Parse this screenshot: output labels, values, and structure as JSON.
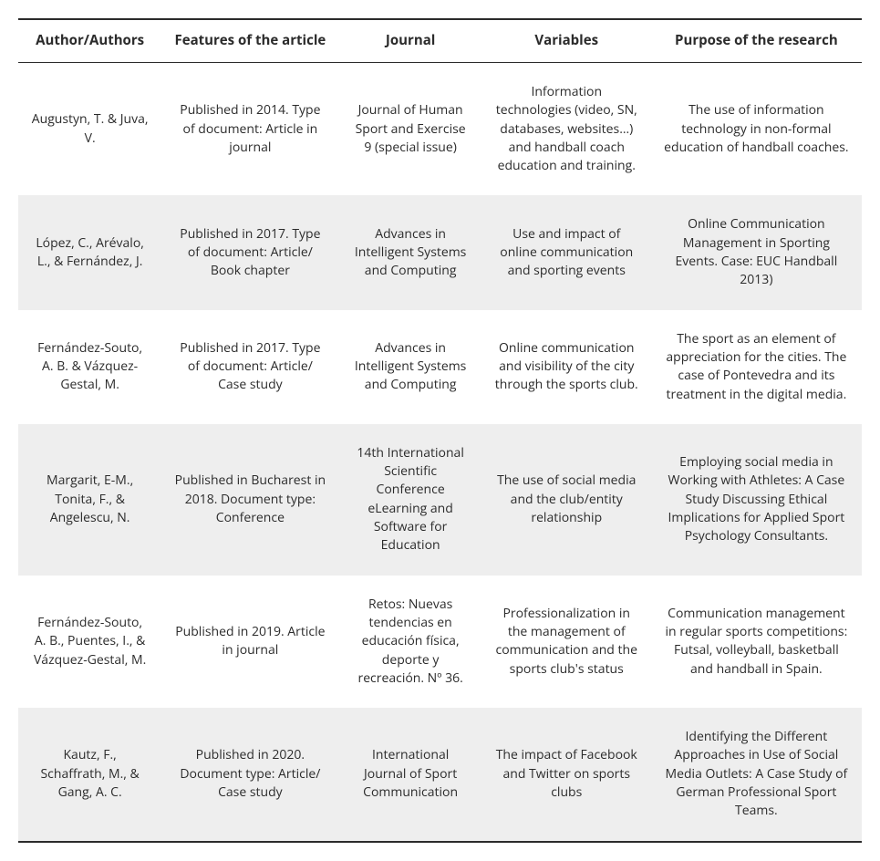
{
  "table": {
    "type": "table",
    "background_color": "#ffffff",
    "row_shade_color": "#eeeeee",
    "border_color": "#2b2b2b",
    "text_color": "#2b2b2b",
    "header_fontsize": 15,
    "body_fontsize": 14,
    "header_fontweight": 700,
    "column_widths_pct": [
      17,
      21,
      17,
      20,
      25
    ],
    "columns": [
      "Author/Authors",
      "Features of the article",
      "Journal",
      "Variables",
      "Purpose of the research"
    ],
    "rows": [
      {
        "shaded": false,
        "cells": [
          "Augustyn, T. & Juva, V.",
          "Published in 2014. Type of document: Article in journal",
          "Journal of Human Sport and Exercise 9 (special issue)",
          "Information technologies (video, SN, databases, websites…) and handball coach education and training.",
          "The use of information technology in non-formal education of handball coaches."
        ]
      },
      {
        "shaded": true,
        "cells": [
          "López, C., Arévalo, L., & Fernández, J.",
          "Published in 2017. Type of document: Article/ Book chapter",
          "Advances in Intelligent Systems and Computing",
          "Use and impact of online communication and sporting events",
          "Online Communication Management in Sporting Events. Case: EUC Handball 2013)"
        ]
      },
      {
        "shaded": false,
        "cells": [
          "Fernández-Souto, A. B. & Vázquez-Gestal, M.",
          "Published in 2017. Type of document: Article/ Case study",
          "Advances in Intelligent Systems and Computing",
          "Online communication and visibility of the city through the sports club.",
          "The sport as an element of appreciation for the cities. The case of Pontevedra and its treatment in the digital media."
        ]
      },
      {
        "shaded": true,
        "cells": [
          "Margarit, E-M., Tonita, F., & Angelescu, N.",
          "Published in Bucharest in 2018. Document type: Conference",
          "14th International Scientific Conference eLearning and Software for Education",
          "The use of social media and the club/entity relationship",
          "Employing social media in Working with Athletes: A Case Study Discussing Ethical Implications for Applied Sport Psychology Consultants."
        ]
      },
      {
        "shaded": false,
        "cells": [
          "Fernández-Souto, A. B., Puentes, I., & Vázquez-Gestal, M.",
          "Published in 2019. Article in journal",
          "Retos: Nuevas tendencias en educación física, deporte y recreación. Nº 36.",
          "Professionalization in the management of communication and the sports club's status",
          "Communication management in regular sports competitions: Futsal, volleyball, basketball and handball in Spain."
        ]
      },
      {
        "shaded": true,
        "cells": [
          "Kautz, F., Schaffrath, M., & Gang, A. C.",
          "Published in 2020. Document type: Article/ Case study",
          "International Journal of Sport Communication",
          "The impact of Facebook and Twitter on sports clubs",
          "Identifying the Different Approaches in Use of Social Media Outlets: A Case Study of German Professional Sport Teams."
        ]
      }
    ]
  }
}
